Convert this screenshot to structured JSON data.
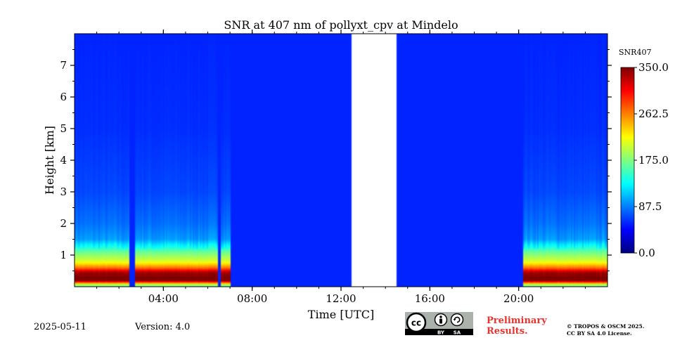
{
  "chart_data": {
    "type": "heatmap",
    "title": "SNR at 407 nm of pollyxt_cpv at Mindelo",
    "xlabel": "Time [UTC]",
    "ylabel": "Height [km]",
    "xlim_hours": [
      0,
      24
    ],
    "ylim_km": [
      0,
      8
    ],
    "x_ticks": [
      {
        "value": 4,
        "label": "04:00"
      },
      {
        "value": 8,
        "label": "08:00"
      },
      {
        "value": 12,
        "label": "12:00"
      },
      {
        "value": 16,
        "label": "16:00"
      },
      {
        "value": 20,
        "label": "20:00"
      }
    ],
    "y_ticks": [
      {
        "value": 1,
        "label": "1"
      },
      {
        "value": 2,
        "label": "2"
      },
      {
        "value": 3,
        "label": "3"
      },
      {
        "value": 4,
        "label": "4"
      },
      {
        "value": 5,
        "label": "5"
      },
      {
        "value": 6,
        "label": "6"
      },
      {
        "value": 7,
        "label": "7"
      }
    ],
    "colorbar": {
      "label": "SNR407",
      "min": 0,
      "max": 350,
      "ticks": [
        {
          "value": 0,
          "label": "0.0"
        },
        {
          "value": 87.5,
          "label": "87.5"
        },
        {
          "value": 175,
          "label": "175.0"
        },
        {
          "value": 262.5,
          "label": "262.5"
        },
        {
          "value": 350,
          "label": "350.0"
        }
      ],
      "colormap": "jet"
    },
    "data_gap_hours": [
      12.5,
      14.5
    ],
    "background_snr": 8,
    "snr_profile": [
      {
        "height_km": 0.05,
        "snr": 140
      },
      {
        "height_km": 0.2,
        "snr": 345
      },
      {
        "height_km": 0.45,
        "snr": 320
      },
      {
        "height_km": 0.6,
        "snr": 240
      },
      {
        "height_km": 0.8,
        "snr": 175
      },
      {
        "height_km": 1.1,
        "snr": 130
      },
      {
        "height_km": 1.5,
        "snr": 55
      },
      {
        "height_km": 2.0,
        "snr": 38
      },
      {
        "height_km": 3.0,
        "snr": 22
      },
      {
        "height_km": 5.0,
        "snr": 12
      },
      {
        "height_km": 8.0,
        "snr": 8
      }
    ],
    "signal_periods_hours": [
      [
        0,
        7.0
      ],
      [
        20.2,
        24
      ]
    ],
    "dropouts_hours": [
      [
        2.5,
        2.7
      ],
      [
        6.45,
        6.6
      ]
    ]
  },
  "footer": {
    "date": "2025-05-11",
    "version": "Version: 4.0",
    "preliminary_line1": "Preliminary",
    "preliminary_line2": "Results.",
    "copyright_line1": "© TROPOS & OSCM 2025.",
    "copyright_line2": "CC BY SA 4.0 License.",
    "license_badge": {
      "cc": "cc",
      "by": "BY",
      "sa": "SA"
    }
  },
  "colors": {
    "background_field": "#0447dc",
    "gap": "#ffffff",
    "preliminary_text": "#e8332e"
  }
}
